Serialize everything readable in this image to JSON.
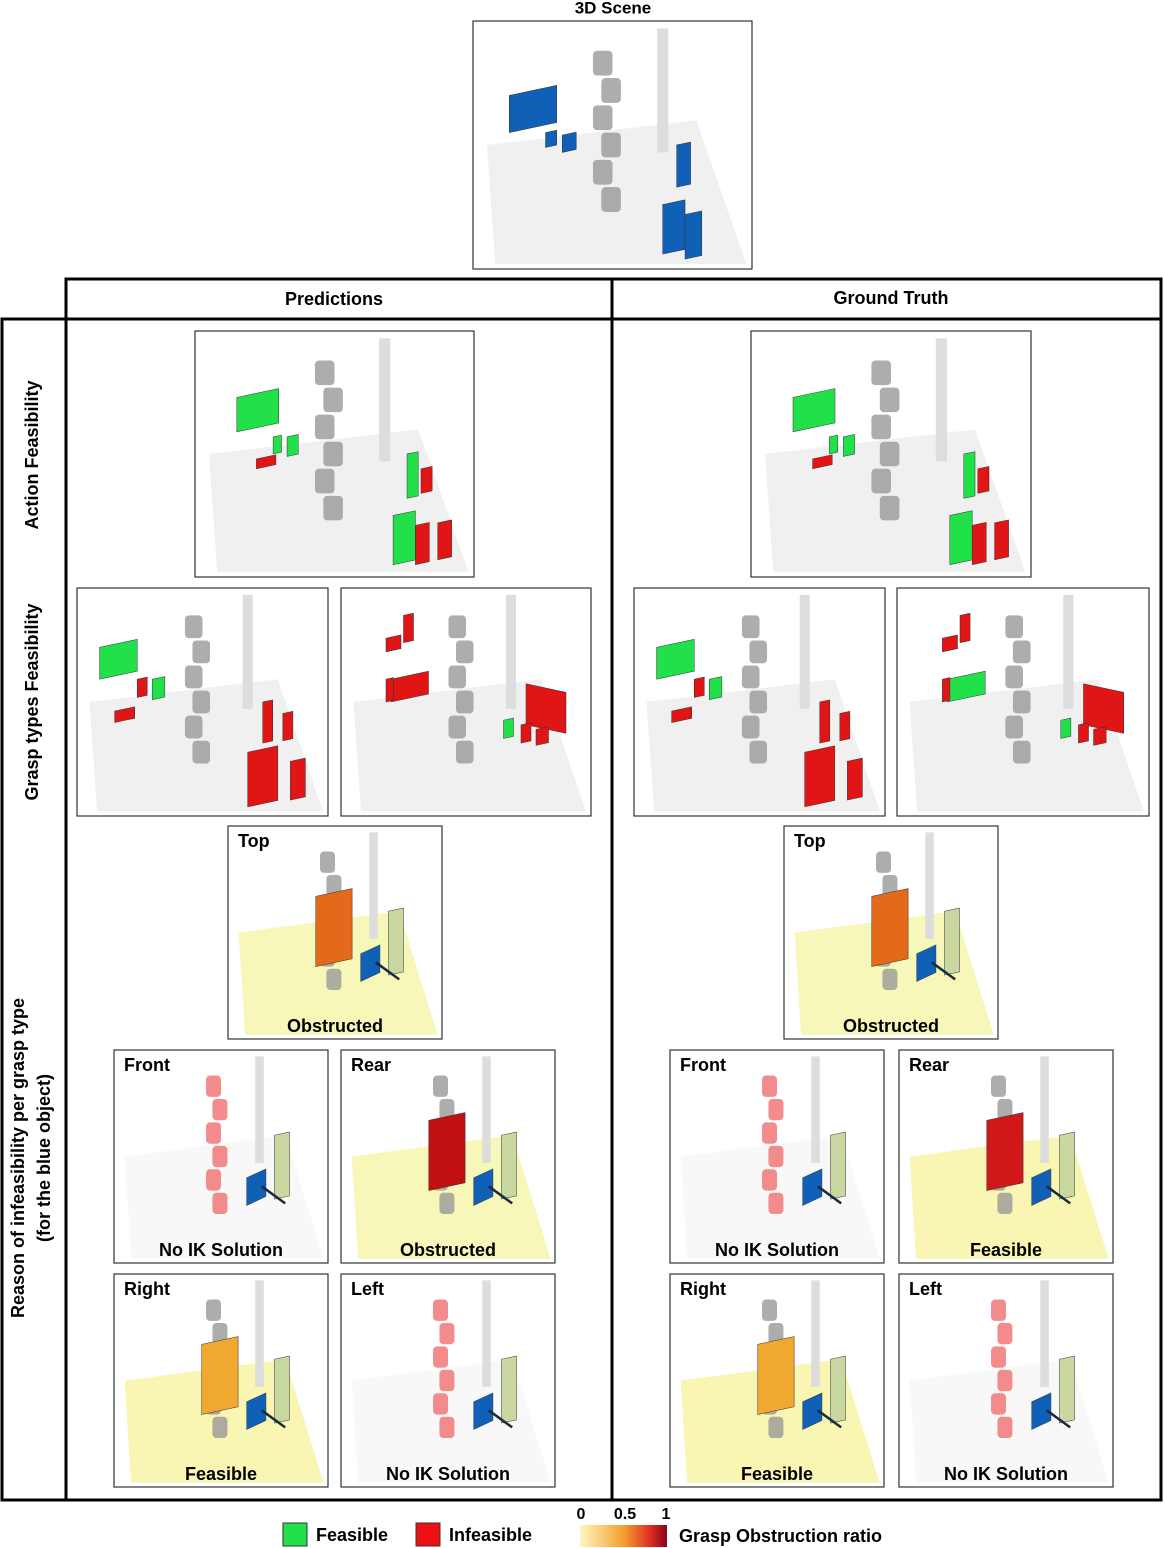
{
  "scene_title": "3D Scene",
  "columns": [
    "Predictions",
    "Ground Truth"
  ],
  "row_labels": {
    "action": "Action Feasibility",
    "grasp_types": "Grasp types Feasibility",
    "reason": [
      "Reason of infeasibility per grasp type",
      "(for the blue object)"
    ]
  },
  "panels": {
    "predictions": [
      {
        "grasp": "Top",
        "reason": "Obstructed"
      },
      {
        "grasp": "Front",
        "reason": "No IK Solution"
      },
      {
        "grasp": "Rear",
        "reason": "Obstructed"
      },
      {
        "grasp": "Right",
        "reason": "Feasible"
      },
      {
        "grasp": "Left",
        "reason": "No IK Solution"
      }
    ],
    "ground_truth": [
      {
        "grasp": "Top",
        "reason": "Obstructed"
      },
      {
        "grasp": "Front",
        "reason": "No IK Solution"
      },
      {
        "grasp": "Rear",
        "reason": "Feasible"
      },
      {
        "grasp": "Right",
        "reason": "Feasible"
      },
      {
        "grasp": "Left",
        "reason": "No IK Solution"
      }
    ]
  },
  "legend": {
    "items": [
      "Feasible",
      "Infeasible"
    ],
    "colorbar": {
      "ticks": [
        "0",
        "0.5",
        "1"
      ],
      "label": "Grasp Obstruction ratio"
    }
  }
}
